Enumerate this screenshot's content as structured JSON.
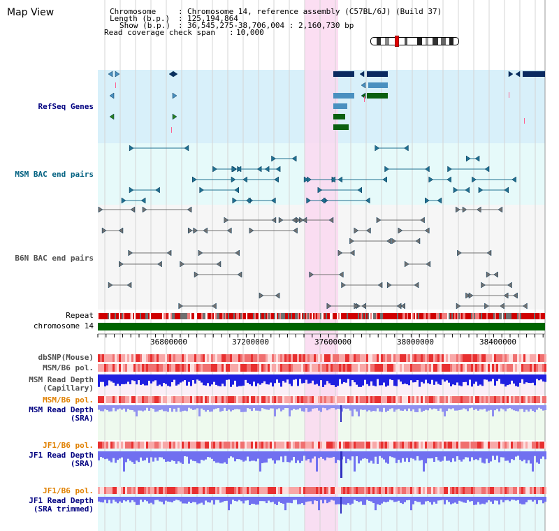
{
  "title": "Map View",
  "info": {
    "chromosome_label": "Chromosome",
    "chromosome_value": "Chromosome 14, reference assembly (C57BL/6J) (Build 37)",
    "length_label": "Length (b.p.)",
    "length_value": "125,194,864",
    "show_label": "Show (b.p.)",
    "show_value": "36,545,275-38,706,004 : 2,160,730 bp",
    "coverage_label": "Read coverage check span",
    "coverage_value": "10,000"
  },
  "tracks": {
    "refseq": "RefSeq Genes",
    "msm_bac": "MSM BAC end pairs",
    "b6n_bac": "B6N BAC end pairs",
    "repeat": "Repeat",
    "chromosome": "chromosome 14",
    "dbsnp": "dbSNP(Mouse)",
    "msm_b6_pol": "MSM/B6 pol.",
    "msm_depth_cap_1": "MSM Read Depth",
    "msm_depth_cap_2": "(Capillary)",
    "msm_b6_pol2": "MSM/B6 pol.",
    "msm_depth_sra_1": "MSM Read Depth",
    "msm_depth_sra_2": "(SRA)",
    "jf1_b6_pol": "JF1/B6 pol.",
    "jf1_depth_sra_1": "JF1 Read Depth",
    "jf1_depth_sra_2": "(SRA)",
    "jf1_b6_pol2": "JF1/B6 pol.",
    "jf1_depth_trim_1": "JF1 Read Depth",
    "jf1_depth_trim_2": "(SRA trimmed)"
  },
  "axis_ticks": [
    "36800000",
    "37200000",
    "37600000",
    "38000000",
    "38400000"
  ],
  "colors": {
    "label_blue": "#000080",
    "label_teal": "#006080",
    "label_gray": "#505050",
    "label_orange": "#e08000",
    "highlight": "#fad8f0",
    "refseq_bg": "#d8f0fa",
    "msm_bg": "#e6fafa",
    "chromosome": "#006400"
  }
}
